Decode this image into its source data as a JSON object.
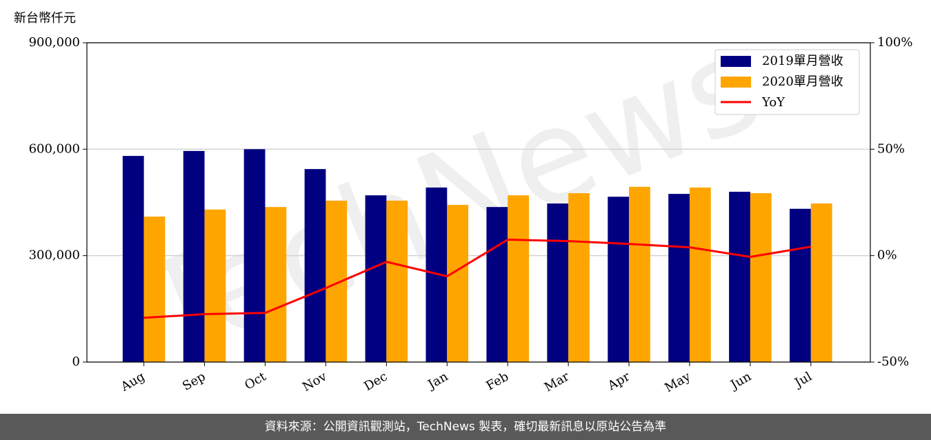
{
  "chart_data": {
    "type": "bar_line",
    "y_label": "新台幣仟元",
    "watermark": "TechNews",
    "categories": [
      "Aug",
      "Sep",
      "Oct",
      "Nov",
      "Dec",
      "Jan",
      "Feb",
      "Mar",
      "Apr",
      "May",
      "Jun",
      "Jul"
    ],
    "series": [
      {
        "name": "2019單月營收",
        "color": "#000080",
        "kind": "bar",
        "values": [
          581000,
          595000,
          600000,
          544000,
          470000,
          492000,
          437000,
          447000,
          466000,
          474000,
          480000,
          432000
        ]
      },
      {
        "name": "2020單月營收",
        "color": "#ffa500",
        "kind": "bar",
        "values": [
          410000,
          430000,
          437000,
          455000,
          455000,
          443000,
          470000,
          476000,
          494000,
          492000,
          476000,
          447000
        ]
      },
      {
        "name": "YoY",
        "color": "#ff0000",
        "kind": "line",
        "axis": "y2",
        "values": [
          -29.2,
          -27.5,
          -26.9,
          -15.2,
          -2.9,
          -9.7,
          7.5,
          6.8,
          5.5,
          3.9,
          -0.6,
          4.2
        ]
      }
    ],
    "ylim": [
      0,
      900000
    ],
    "yticks": [
      0,
      {
        "value": 300000,
        "label": "300,000"
      },
      {
        "value": 600000,
        "label": "600,000"
      },
      {
        "value": 900000,
        "label": "900,000"
      }
    ],
    "y2lim": [
      -50,
      100
    ],
    "y2ticks": [
      {
        "value": -50,
        "label": "-50%"
      },
      {
        "value": 0,
        "label": "0%"
      },
      {
        "value": 50,
        "label": "50%"
      },
      {
        "value": 100,
        "label": "100%"
      }
    ],
    "grid": true,
    "legend": "upper-right"
  },
  "footer": "資料來源：公開資訊觀測站，TechNews 製表，確切最新訊息以原站公告為準"
}
